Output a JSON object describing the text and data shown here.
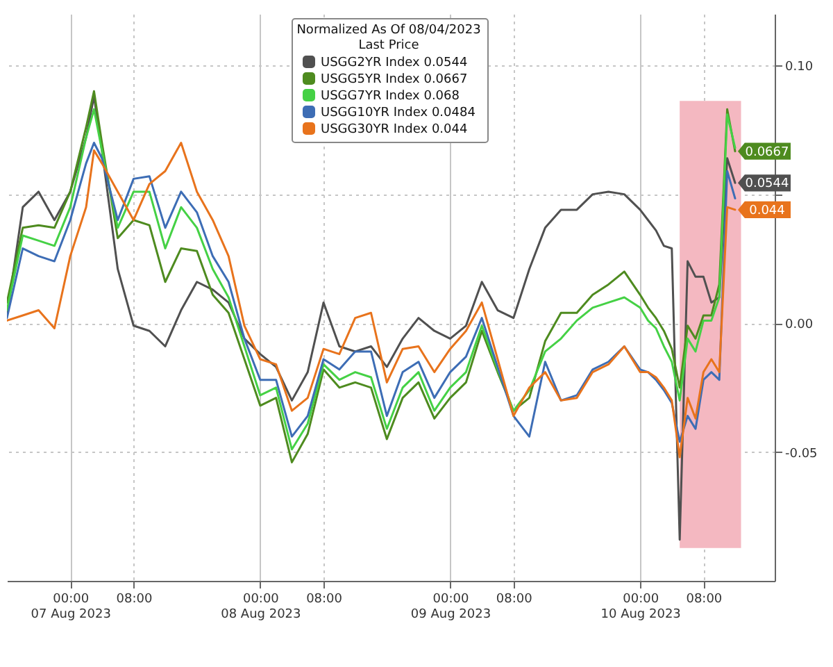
{
  "chart_data": {
    "type": "line",
    "x": [
      "2023-08-06T16:00",
      "2023-08-06T18:00",
      "2023-08-06T20:00",
      "2023-08-06T22:00",
      "2023-08-07T00:00",
      "2023-08-07T02:00",
      "2023-08-07T03:00",
      "2023-08-07T04:00",
      "2023-08-07T06:00",
      "2023-08-07T08:00",
      "2023-08-07T10:00",
      "2023-08-07T12:00",
      "2023-08-07T14:00",
      "2023-08-07T16:00",
      "2023-08-07T18:00",
      "2023-08-07T20:00",
      "2023-08-07T22:00",
      "2023-08-08T00:00",
      "2023-08-08T02:00",
      "2023-08-08T04:00",
      "2023-08-08T06:00",
      "2023-08-08T08:00",
      "2023-08-08T10:00",
      "2023-08-08T12:00",
      "2023-08-08T14:00",
      "2023-08-08T16:00",
      "2023-08-08T18:00",
      "2023-08-08T20:00",
      "2023-08-08T22:00",
      "2023-08-09T00:00",
      "2023-08-09T02:00",
      "2023-08-09T04:00",
      "2023-08-09T06:00",
      "2023-08-09T08:00",
      "2023-08-09T10:00",
      "2023-08-09T12:00",
      "2023-08-09T14:00",
      "2023-08-09T16:00",
      "2023-08-09T18:00",
      "2023-08-09T20:00",
      "2023-08-09T22:00",
      "2023-08-10T00:00",
      "2023-08-10T01:00",
      "2023-08-10T02:00",
      "2023-08-10T03:00",
      "2023-08-10T04:00",
      "2023-08-10T05:00",
      "2023-08-10T06:00",
      "2023-08-10T07:00",
      "2023-08-10T08:00",
      "2023-08-10T09:00",
      "2023-08-10T10:00",
      "2023-08-10T11:00",
      "2023-08-10T12:00"
    ],
    "xlim": [
      "2023-08-06T16:00",
      "2023-08-10T17:00"
    ],
    "xticks": [
      {
        "value": "2023-08-07T00:00",
        "label": "00:00\n07 Aug 2023"
      },
      {
        "value": "2023-08-07T08:00",
        "label": "08:00"
      },
      {
        "value": "2023-08-08T00:00",
        "label": "00:00\n08 Aug 2023"
      },
      {
        "value": "2023-08-08T08:00",
        "label": "08:00"
      },
      {
        "value": "2023-08-09T00:00",
        "label": "00:00\n09 Aug 2023"
      },
      {
        "value": "2023-08-09T08:00",
        "label": "08:00"
      },
      {
        "value": "2023-08-10T00:00",
        "label": "00:00\n10 Aug 2023"
      },
      {
        "value": "2023-08-10T08:00",
        "label": "08:00"
      }
    ],
    "ylim": [
      -0.1,
      0.12
    ],
    "yticks": [
      {
        "value": 0.1,
        "label": "0.10"
      },
      {
        "value": 0.05,
        "label": null
      },
      {
        "value": 0,
        "label": "0.00"
      },
      {
        "value": -0.05,
        "label": "-0.05"
      }
    ],
    "grid": true,
    "legend": "top",
    "legend_title": "Normalized As Of 08/04/2023\nLast Price",
    "bands": [
      {
        "axis": "x",
        "from": "2023-08-10T05:00",
        "to": "2023-08-10T12:45",
        "color": "#f4b8c1"
      }
    ],
    "series": [
      {
        "name": "USGG2YR Index 0.0544",
        "color": "#505050",
        "values": [
          0.003,
          0.045,
          0.051,
          0.04,
          0.051,
          0.072,
          0.088,
          0.067,
          0.021,
          -0.001,
          -0.003,
          -0.009,
          0.005,
          0.016,
          0.013,
          0.008,
          -0.006,
          -0.012,
          -0.017,
          -0.03,
          -0.019,
          0.008,
          -0.009,
          -0.011,
          -0.009,
          -0.017,
          -0.006,
          0.002,
          -0.003,
          -0.006,
          -0.001,
          0.016,
          0.005,
          0.002,
          0.021,
          0.037,
          0.044,
          0.044,
          0.05,
          0.051,
          0.05,
          0.044,
          0.04,
          0.036,
          0.03,
          0.029,
          -0.084,
          0.024,
          0.018,
          0.018,
          0.008,
          0.01,
          0.064,
          0.0544
        ],
        "value_labels": [
          null,
          null,
          null,
          null,
          null,
          null,
          null,
          null,
          null,
          null,
          null,
          null,
          null,
          null,
          null,
          null,
          null,
          null,
          null,
          null,
          null,
          null,
          null,
          null,
          null,
          null,
          null,
          null,
          null,
          null,
          null,
          null,
          null,
          null,
          null,
          null,
          null,
          null,
          null,
          null,
          null,
          null,
          null,
          null,
          null,
          null,
          null,
          null,
          null,
          null,
          null,
          null,
          null,
          "0.0544"
        ]
      },
      {
        "name": "USGG5YR Index 0.0667",
        "color": "#4e8b1f",
        "values": [
          0.008,
          0.037,
          0.038,
          0.037,
          0.051,
          0.076,
          0.09,
          0.07,
          0.033,
          0.04,
          0.038,
          0.016,
          0.029,
          0.028,
          0.011,
          0.004,
          -0.014,
          -0.032,
          -0.029,
          -0.054,
          -0.043,
          -0.018,
          -0.025,
          -0.023,
          -0.025,
          -0.045,
          -0.029,
          -0.023,
          -0.037,
          -0.029,
          -0.023,
          -0.003,
          -0.019,
          -0.034,
          -0.029,
          -0.007,
          0.004,
          0.004,
          0.011,
          0.015,
          0.02,
          0.011,
          0.006,
          0.002,
          -0.003,
          -0.01,
          -0.025,
          -0.001,
          -0.006,
          0.003,
          0.003,
          0.015,
          0.083,
          0.0667
        ],
        "value_labels": [
          null,
          null,
          null,
          null,
          null,
          null,
          null,
          null,
          null,
          null,
          null,
          null,
          null,
          null,
          null,
          null,
          null,
          null,
          null,
          null,
          null,
          null,
          null,
          null,
          null,
          null,
          null,
          null,
          null,
          null,
          null,
          null,
          null,
          null,
          null,
          null,
          null,
          null,
          null,
          null,
          null,
          null,
          null,
          null,
          null,
          null,
          null,
          null,
          null,
          null,
          null,
          null,
          null,
          "0.0667"
        ]
      },
      {
        "name": "USGG7YR Index 0.068",
        "color": "#45d145",
        "values": [
          0.005,
          0.034,
          0.032,
          0.03,
          0.045,
          0.072,
          0.083,
          0.067,
          0.037,
          0.051,
          0.051,
          0.029,
          0.045,
          0.037,
          0.021,
          0.01,
          -0.009,
          -0.028,
          -0.025,
          -0.049,
          -0.039,
          -0.016,
          -0.022,
          -0.019,
          -0.021,
          -0.041,
          -0.025,
          -0.019,
          -0.034,
          -0.025,
          -0.019,
          -0.001,
          -0.018,
          -0.034,
          -0.026,
          -0.011,
          -0.006,
          0.001,
          0.006,
          0.008,
          0.01,
          0.006,
          0.001,
          -0.002,
          -0.009,
          -0.015,
          -0.03,
          -0.006,
          -0.011,
          0.001,
          0.001,
          0.01,
          0.081,
          0.068
        ]
      },
      {
        "name": "USGG10YR Index 0.0484",
        "color": "#3d6db5",
        "values": [
          0.002,
          0.029,
          0.026,
          0.024,
          0.04,
          0.062,
          0.07,
          0.064,
          0.04,
          0.056,
          0.057,
          0.037,
          0.051,
          0.043,
          0.026,
          0.016,
          -0.006,
          -0.022,
          -0.022,
          -0.044,
          -0.036,
          -0.014,
          -0.018,
          -0.011,
          -0.011,
          -0.036,
          -0.019,
          -0.015,
          -0.029,
          -0.019,
          -0.013,
          0.002,
          -0.017,
          -0.036,
          -0.044,
          -0.015,
          -0.03,
          -0.028,
          -0.018,
          -0.015,
          -0.009,
          -0.018,
          -0.019,
          -0.022,
          -0.026,
          -0.031,
          -0.046,
          -0.036,
          -0.041,
          -0.022,
          -0.019,
          -0.022,
          0.059,
          0.0484
        ]
      },
      {
        "name": "USGG30YR Index 0.044",
        "color": "#e8731c",
        "values": [
          0.001,
          0.003,
          0.005,
          -0.002,
          0.026,
          0.045,
          0.067,
          0.062,
          0.051,
          0.04,
          0.054,
          0.059,
          0.07,
          0.051,
          0.04,
          0.026,
          -0.001,
          -0.014,
          -0.016,
          -0.034,
          -0.029,
          -0.01,
          -0.012,
          0.002,
          0.004,
          -0.023,
          -0.01,
          -0.009,
          -0.019,
          -0.01,
          -0.003,
          0.008,
          -0.014,
          -0.036,
          -0.025,
          -0.019,
          -0.03,
          -0.029,
          -0.019,
          -0.016,
          -0.009,
          -0.019,
          -0.019,
          -0.021,
          -0.025,
          -0.03,
          -0.052,
          -0.029,
          -0.037,
          -0.019,
          -0.014,
          -0.019,
          0.045,
          0.044
        ],
        "value_labels": [
          null,
          null,
          null,
          null,
          null,
          null,
          null,
          null,
          null,
          null,
          null,
          null,
          null,
          null,
          null,
          null,
          null,
          null,
          null,
          null,
          null,
          null,
          null,
          null,
          null,
          null,
          null,
          null,
          null,
          null,
          null,
          null,
          null,
          null,
          null,
          null,
          null,
          null,
          null,
          null,
          null,
          null,
          null,
          null,
          null,
          null,
          null,
          null,
          null,
          null,
          null,
          null,
          null,
          "0.044"
        ]
      }
    ]
  }
}
